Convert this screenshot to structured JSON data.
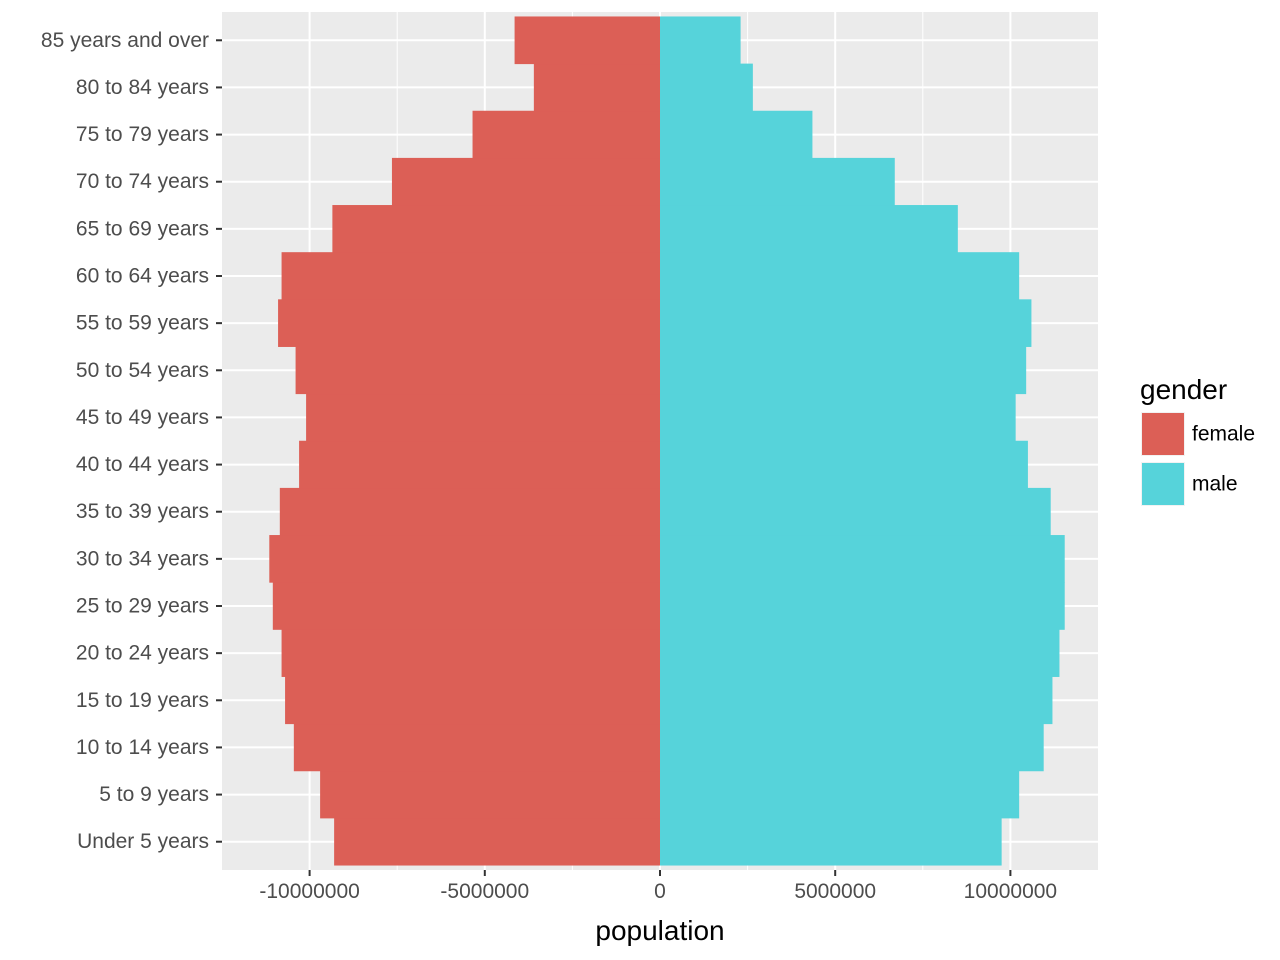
{
  "chart_data": {
    "type": "bar",
    "orientation": "horizontal",
    "categories": [
      "Under 5 years",
      "5 to 9 years",
      "10 to 14 years",
      "15 to 19 years",
      "20 to 24 years",
      "25 to 29 years",
      "30 to 34 years",
      "35 to 39 years",
      "40 to 44 years",
      "45 to 49 years",
      "50 to 54 years",
      "55 to 59 years",
      "60 to 64 years",
      "65 to 69 years",
      "70 to 74 years",
      "75 to 79 years",
      "80 to 84 years",
      "85 years and over"
    ],
    "series": [
      {
        "name": "female",
        "color": "#dc5f56",
        "values": [
          -9300000,
          -9700000,
          -10450000,
          -10700000,
          -10800000,
          -11050000,
          -11150000,
          -10850000,
          -10300000,
          -10100000,
          -10400000,
          -10900000,
          -10800000,
          -9350000,
          -7650000,
          -5350000,
          -3600000,
          -4150000
        ]
      },
      {
        "name": "male",
        "color": "#56d3da",
        "values": [
          9750000,
          10250000,
          10950000,
          11200000,
          11400000,
          11550000,
          11550000,
          11150000,
          10500000,
          10150000,
          10450000,
          10600000,
          10250000,
          8500000,
          6700000,
          4350000,
          2650000,
          2300000
        ]
      }
    ],
    "xlabel": "population",
    "ylabel": "",
    "xlim": [
      -12500000,
      12500000
    ],
    "x_ticks": [
      -10000000,
      -5000000,
      0,
      5000000,
      10000000
    ],
    "x_tick_labels": [
      "-10000000",
      "-5000000",
      "0",
      "5000000",
      "10000000"
    ],
    "grid": true,
    "panel_background": "#ebebeb",
    "legend": {
      "title": "gender",
      "position": "right",
      "entries": [
        "female",
        "male"
      ]
    }
  }
}
